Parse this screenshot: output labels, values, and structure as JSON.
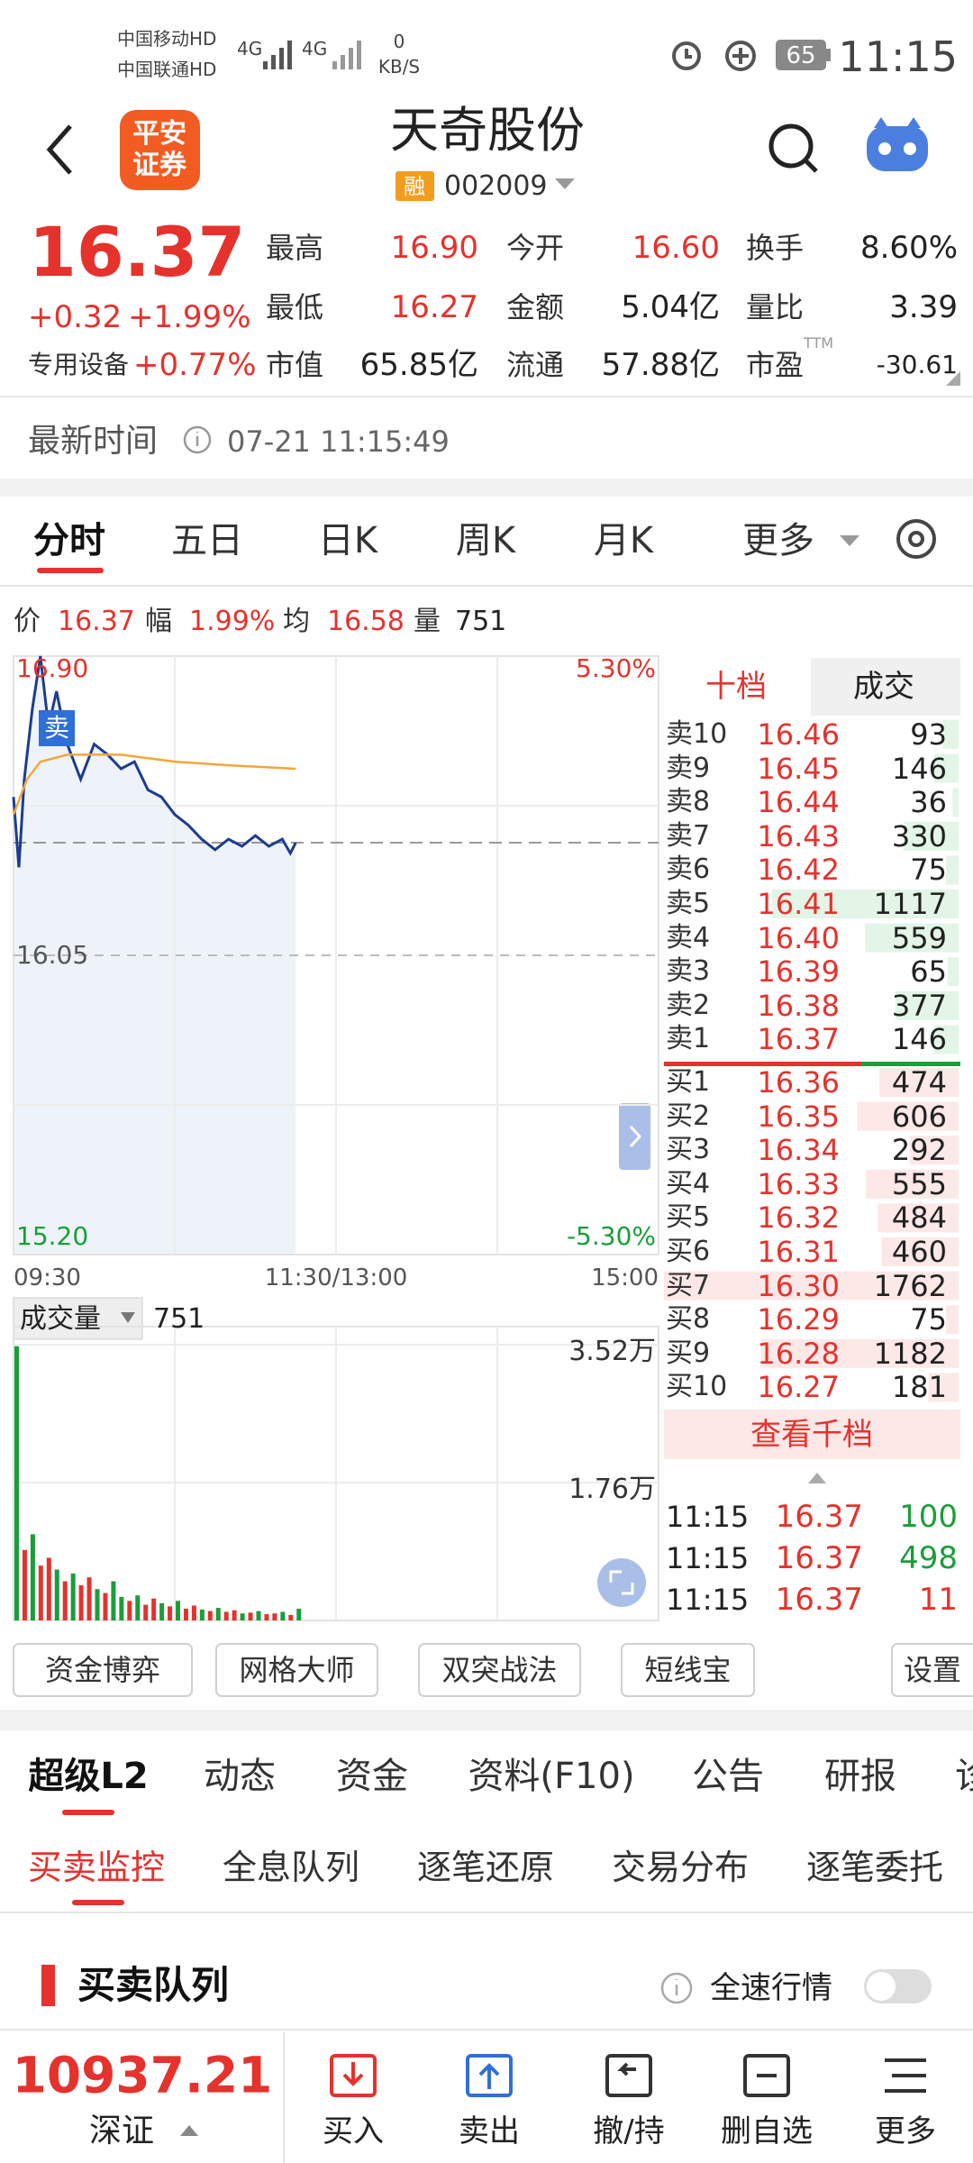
{
  "status_bar": {
    "carrier_1": "中国移动HD",
    "carrier_2": "中国联通HD",
    "network_1": "4G",
    "network_2": "4G",
    "speed": "0",
    "speed_unit": "KB/S",
    "battery": "65",
    "time": "11:15"
  },
  "header": {
    "logo": [
      "平安",
      "证券"
    ],
    "title": "天奇股份",
    "badge": "融",
    "code": "002009"
  },
  "quote": {
    "price": "16.37",
    "change": "+0.32",
    "change_pct": "+1.99%",
    "sector": "专用设备",
    "sector_change": "+0.77%",
    "stats": [
      [
        {
          "label": "最高",
          "value": "16.90"
        },
        {
          "label": "今开",
          "value": "16.60"
        },
        {
          "label": "换手",
          "value": "8.60%"
        }
      ],
      [
        {
          "label": "最低",
          "value": "16.27"
        },
        {
          "label": "金额",
          "value": "5.04亿"
        },
        {
          "label": "量比",
          "value": "3.39"
        }
      ],
      [
        {
          "label": "市值",
          "value": "65.85亿"
        },
        {
          "label": "流通",
          "value": "57.88亿"
        },
        {
          "label": "市盈",
          "sup": "TTM",
          "value": "-30.61"
        }
      ]
    ]
  },
  "update_time": {
    "label": "最新时间",
    "value": "07-21 11:15:49"
  },
  "chart_tabs": [
    "分时",
    "五日",
    "日K",
    "周K",
    "月K",
    "更多"
  ],
  "chart_info": [
    {
      "label": "价",
      "value": "16.37"
    },
    {
      "label": "幅",
      "value": "1.99%"
    },
    {
      "label": "均",
      "value": "16.58"
    },
    {
      "label": "量",
      "value": "751"
    }
  ],
  "chart_data": [
    {
      "type": "line",
      "xlim": [
        0,
        240
      ],
      "ylim": [
        15.2,
        16.9
      ],
      "y2lim": [
        -5.3,
        5.3
      ],
      "yticks": [
        {
          "value": 16.9,
          "label": "16.90"
        },
        16.05,
        {
          "value": 15.2,
          "label": "15.20"
        }
      ],
      "y2ticks": [
        {
          "value": 5.3,
          "label": "5.30%"
        },
        {
          "value": -5.3,
          "label": "-5.30%"
        }
      ],
      "xticks": [
        {
          "value": 0,
          "label": "09:30"
        },
        {
          "value": 120,
          "label": "11:30/13:00"
        },
        {
          "value": 240,
          "label": "15:00"
        }
      ],
      "current_line": 16.37,
      "annotation": "卖",
      "series": [
        {
          "color": "#1d3c8f",
          "x": [
            0,
            2,
            4,
            7,
            10,
            13,
            16,
            20,
            25,
            30,
            35,
            40,
            45,
            50,
            55,
            60,
            65,
            70,
            75,
            80,
            85,
            90,
            95,
            100,
            103,
            105
          ],
          "values": [
            16.5,
            16.3,
            16.55,
            16.75,
            16.9,
            16.7,
            16.8,
            16.65,
            16.55,
            16.65,
            16.62,
            16.58,
            16.6,
            16.52,
            16.5,
            16.45,
            16.42,
            16.38,
            16.35,
            16.38,
            16.36,
            16.39,
            16.36,
            16.38,
            16.34,
            16.37
          ]
        },
        {
          "color": "#f5a53a",
          "x": [
            0,
            5,
            10,
            20,
            40,
            60,
            80,
            105
          ],
          "values": [
            16.45,
            16.55,
            16.6,
            16.62,
            16.62,
            16.6,
            16.59,
            16.58
          ]
        }
      ]
    },
    {
      "type": "bar",
      "label": "成交量",
      "value": "751",
      "ylim": [
        0,
        35200
      ],
      "yticks": [
        {
          "value": 35200,
          "label": "3.52万"
        },
        {
          "value": 17600,
          "label": "1.76万"
        }
      ],
      "up_color": "#e5322d",
      "down_color": "#1a9e3a",
      "x": [
        0,
        3,
        6,
        9,
        12,
        15,
        18,
        21,
        24,
        27,
        30,
        33,
        36,
        39,
        42,
        45,
        48,
        51,
        54,
        57,
        60,
        63,
        66,
        69,
        72,
        75,
        78,
        81,
        84,
        87,
        90,
        93,
        96,
        99,
        102,
        105
      ],
      "values": [
        35000,
        9000,
        11000,
        7000,
        8000,
        6500,
        5000,
        6000,
        4500,
        5500,
        4000,
        3500,
        5000,
        3000,
        2500,
        3200,
        2000,
        2800,
        2200,
        1800,
        2500,
        1500,
        1900,
        1400,
        1200,
        1600,
        1100,
        1300,
        900,
        1000,
        1200,
        800,
        900,
        1100,
        700,
        1500
      ],
      "up": [
        false,
        true,
        false,
        true,
        true,
        false,
        true,
        false,
        true,
        true,
        false,
        true,
        false,
        false,
        true,
        false,
        true,
        true,
        false,
        true,
        false,
        true,
        true,
        false,
        true,
        false,
        true,
        true,
        false,
        true,
        false,
        true,
        true,
        false,
        true,
        false
      ]
    }
  ],
  "order_book": {
    "tabs": [
      "十档",
      "成交"
    ],
    "asks": [
      {
        "label": "卖10",
        "price": "16.46",
        "volume": 93
      },
      {
        "label": "卖9",
        "price": "16.45",
        "volume": 146
      },
      {
        "label": "卖8",
        "price": "16.44",
        "volume": 36
      },
      {
        "label": "卖7",
        "price": "16.43",
        "volume": 330
      },
      {
        "label": "卖6",
        "price": "16.42",
        "volume": 75
      },
      {
        "label": "卖5",
        "price": "16.41",
        "volume": 1117
      },
      {
        "label": "卖4",
        "price": "16.40",
        "volume": 559
      },
      {
        "label": "卖3",
        "price": "16.39",
        "volume": 65
      },
      {
        "label": "卖2",
        "price": "16.38",
        "volume": 377
      },
      {
        "label": "卖1",
        "price": "16.37",
        "volume": 146
      }
    ],
    "bids": [
      {
        "label": "买1",
        "price": "16.36",
        "volume": 474
      },
      {
        "label": "买2",
        "price": "16.35",
        "volume": 606
      },
      {
        "label": "买3",
        "price": "16.34",
        "volume": 292
      },
      {
        "label": "买4",
        "price": "16.33",
        "volume": 555
      },
      {
        "label": "买5",
        "price": "16.32",
        "volume": 484
      },
      {
        "label": "买6",
        "price": "16.31",
        "volume": 460
      },
      {
        "label": "买7",
        "price": "16.30",
        "volume": 1762
      },
      {
        "label": "买8",
        "price": "16.29",
        "volume": 75
      },
      {
        "label": "买9",
        "price": "16.28",
        "volume": 1182
      },
      {
        "label": "买10",
        "price": "16.27",
        "volume": 181
      }
    ],
    "more": "查看千档",
    "trades": [
      {
        "time": "11:15",
        "price": "16.37",
        "volume": "100",
        "color": "#1a9e3a"
      },
      {
        "time": "11:15",
        "price": "16.37",
        "volume": "498",
        "color": "#1a9e3a"
      },
      {
        "time": "11:15",
        "price": "16.37",
        "volume": "11",
        "color": "#e5322d"
      }
    ]
  },
  "tools": [
    "资金博弈",
    "网格大师",
    "双突战法",
    "短线宝",
    "设置"
  ],
  "section_tabs": [
    "超级L2",
    "动态",
    "资金",
    "资料(F10)",
    "公告",
    "研报",
    "诊"
  ],
  "sub_tabs": [
    "买卖监控",
    "全息队列",
    "逐笔还原",
    "交易分布",
    "逐笔委托"
  ],
  "queue": {
    "title": "买卖队列",
    "toggle_label": "全速行情"
  },
  "bottom_bar": {
    "index_value": "10937.21",
    "index_name": "深证",
    "actions": [
      "买入",
      "卖出",
      "撤/持",
      "删自选",
      "更多"
    ]
  }
}
